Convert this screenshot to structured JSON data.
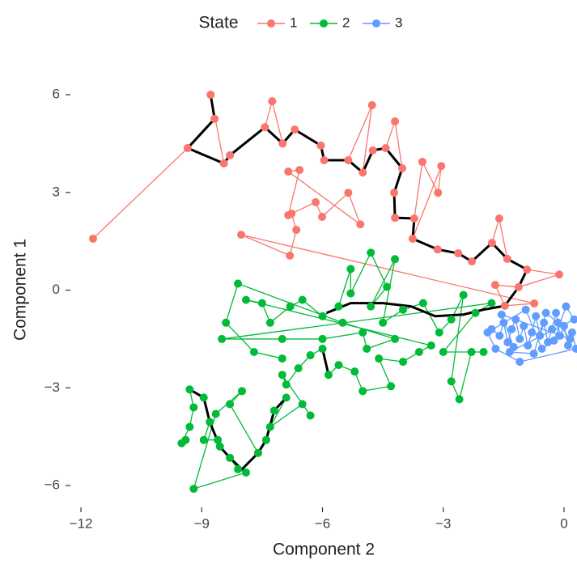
{
  "chart_data": {
    "type": "scatter",
    "x_label": "Component 2",
    "y_label": "Component 1",
    "legend_title": "State",
    "legend_position": "top",
    "grid": false,
    "xlim": [
      -12.25,
      0.32
    ],
    "ylim": [
      -6.6,
      6.55
    ],
    "xticks": [
      {
        "value": -12,
        "label": "−12"
      },
      {
        "value": -9,
        "label": "−9"
      },
      {
        "value": -6,
        "label": "−6"
      },
      {
        "value": -3,
        "label": "−3"
      },
      0
    ],
    "yticks": [
      {
        "value": -6,
        "label": "−6"
      },
      {
        "value": -3,
        "label": "−3"
      },
      0,
      3,
      6
    ],
    "series": [
      {
        "name": "1",
        "color": "#F8766D",
        "x": [
          -11.7,
          -9.35,
          -8.68,
          -8.78,
          -8.45,
          -8.3,
          -7.43,
          -7.25,
          -6.99,
          -6.69,
          -6.04,
          -5.96,
          -5.36,
          -4.77,
          -5.0,
          -4.75,
          -4.43,
          -4.2,
          -4.02,
          -4.22,
          -4.2,
          -3.72,
          -3.52,
          -3.13,
          -3.05,
          -3.76,
          -3.14,
          -2.63,
          -2.29,
          -1.79,
          -1.61,
          -1.41,
          -0.92,
          -0.12,
          -1.13,
          -1.71,
          -1.47,
          -0.74,
          -8.02,
          -6.81,
          -6.65,
          -6.77,
          -6.17,
          -6.01,
          -5.36,
          -5.06,
          -6.85,
          -6.57,
          -6.85
        ],
        "y": [
          1.58,
          4.36,
          5.26,
          6.0,
          3.89,
          4.14,
          5.0,
          5.8,
          4.5,
          4.93,
          4.44,
          3.99,
          3.99,
          5.68,
          3.61,
          4.29,
          4.36,
          5.18,
          3.74,
          2.99,
          2.22,
          2.2,
          3.94,
          2.99,
          3.81,
          1.58,
          1.25,
          1.13,
          0.88,
          1.45,
          2.2,
          0.96,
          0.63,
          0.48,
          0.09,
          0.16,
          -0.48,
          -0.41,
          1.7,
          1.06,
          1.85,
          2.35,
          2.7,
          2.25,
          2.99,
          2.02,
          3.64,
          3.69,
          2.3
        ]
      },
      {
        "name": "2",
        "color": "#00BA38",
        "x": [
          -9.4,
          -9.5,
          -9.3,
          -9.2,
          -9.3,
          -8.95,
          -8.8,
          -8.95,
          -8.6,
          -8.55,
          -8.3,
          -8.1,
          -7.9,
          -9.2,
          -8.65,
          -8.0,
          -8.3,
          -7.6,
          -7.4,
          -7.2,
          -6.9,
          -7.3,
          -6.5,
          -6.3,
          -7.0,
          -6.9,
          -6.6,
          -6.3,
          -6.0,
          -5.85,
          -5.6,
          -5.2,
          -5.0,
          -4.3,
          -4.6,
          -4.0,
          -3.6,
          -3.3,
          -7.9,
          -7.5,
          -7.3,
          -6.8,
          -6.5,
          -6.0,
          -5.6,
          -5.3,
          -5.3,
          -4.8,
          -4.4,
          -4.8,
          -4.2,
          -4.5,
          -4.0,
          -3.5,
          -3.1,
          -2.8,
          -2.5,
          -2.8,
          -2.6,
          -2.3,
          -2.0,
          -3.0,
          -2.2,
          -1.8,
          -8.5,
          -7.0,
          -6.0,
          -5.0,
          -4.9,
          -4.2,
          -5.5,
          -8.1,
          -8.4,
          -7.7,
          -7.0
        ],
        "y": [
          -4.6,
          -4.7,
          -4.2,
          -3.6,
          -3.05,
          -3.3,
          -4.05,
          -4.6,
          -4.6,
          -4.8,
          -5.15,
          -5.5,
          -5.6,
          -6.1,
          -3.8,
          -3.1,
          -3.5,
          -5.0,
          -4.6,
          -3.7,
          -3.3,
          -4.2,
          -3.5,
          -3.85,
          -2.6,
          -2.9,
          -2.4,
          -2.0,
          -1.8,
          -2.6,
          -2.3,
          -2.5,
          -3.1,
          -2.95,
          -2.1,
          -2.2,
          -1.9,
          -1.7,
          -0.3,
          -0.4,
          -1.0,
          -0.5,
          -0.3,
          -0.8,
          -0.5,
          0.65,
          -0.1,
          1.15,
          0.1,
          -0.5,
          0.95,
          -1.0,
          -0.6,
          -0.4,
          -1.3,
          -0.9,
          -0.15,
          -2.8,
          -3.35,
          -1.9,
          -1.9,
          -1.9,
          -0.7,
          -0.4,
          -1.5,
          -1.5,
          -1.5,
          -1.3,
          -1.8,
          -1.5,
          -1.0,
          0.2,
          -1.0,
          -1.9,
          -2.1
        ]
      },
      {
        "name": "3",
        "color": "#619CFF",
        "x": [
          -1.8,
          -1.6,
          -1.5,
          -1.4,
          -1.3,
          -1.2,
          -1.1,
          -1.0,
          -0.9,
          -0.8,
          -0.7,
          -0.6,
          -0.5,
          -0.4,
          -0.3,
          -0.2,
          -0.1,
          0.0,
          0.1,
          0.2,
          0.3,
          -1.1,
          -1.7,
          -1.9,
          -0.95,
          -0.55,
          -0.25,
          0.05,
          0.25,
          -1.35,
          -0.75,
          -0.45,
          -0.15,
          0.15,
          -1.55,
          -1.25
        ],
        "y": [
          -1.2,
          -1.4,
          -1.0,
          -1.6,
          -1.2,
          -0.9,
          -1.5,
          -1.1,
          -1.7,
          -1.3,
          -0.8,
          -1.4,
          -1.0,
          -1.6,
          -1.2,
          -0.7,
          -1.4,
          -1.1,
          -1.7,
          -1.3,
          -1.8,
          -2.2,
          -1.8,
          -1.3,
          -0.6,
          -1.8,
          -1.55,
          -0.5,
          -0.9,
          -1.9,
          -1.95,
          -0.7,
          -1.0,
          -1.5,
          -0.75,
          -1.75
        ]
      }
    ],
    "path": {
      "color": "#000000",
      "x": [
        -8.78,
        -8.68,
        -9.35,
        -8.45,
        -8.3,
        -7.43,
        -6.99,
        -6.69,
        -6.04,
        -5.96,
        -5.36,
        -5.0,
        -4.75,
        -4.43,
        -4.02,
        -4.22,
        -4.2,
        -3.72,
        -3.76,
        -3.14,
        -2.63,
        -2.29,
        -1.79,
        -1.41,
        -0.92,
        -1.13,
        -1.47,
        -2.0,
        -2.5,
        -3.2,
        -3.8,
        -4.5,
        -5.3,
        -5.9,
        null,
        -9.3,
        -8.95,
        -8.8,
        -8.55,
        -8.3,
        -8.0,
        -7.6,
        -7.4,
        -7.2,
        -6.9,
        null,
        -6.0,
        -5.85
      ],
      "y": [
        6.0,
        5.26,
        4.36,
        3.89,
        4.14,
        5.0,
        4.5,
        4.93,
        4.44,
        3.99,
        3.99,
        3.61,
        4.29,
        4.36,
        3.74,
        2.99,
        2.22,
        2.2,
        1.58,
        1.25,
        1.13,
        0.88,
        1.45,
        0.96,
        0.63,
        0.09,
        -0.48,
        -0.6,
        -0.75,
        -0.8,
        -0.5,
        -0.4,
        -0.4,
        -0.7,
        null,
        -3.05,
        -3.3,
        -4.05,
        -4.8,
        -5.15,
        -5.5,
        -5.0,
        -4.6,
        -3.7,
        -3.3,
        null,
        -1.8,
        -2.6
      ]
    }
  }
}
